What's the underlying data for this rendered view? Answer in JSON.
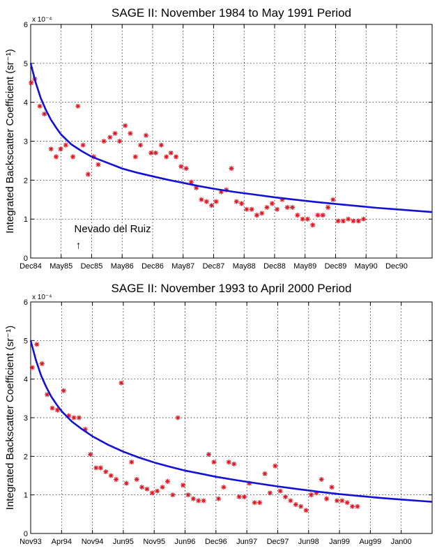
{
  "chart_data": [
    {
      "type": "scatter",
      "title": "SAGE II: November 1984 to May 1991 Period",
      "ylabel": "Integrated Backscatter Coefficient (sr⁻¹)",
      "y_multiplier": "x 10⁻⁴",
      "ylim": [
        0,
        6
      ],
      "yticks": [
        "0",
        "1",
        "2",
        "3",
        "4",
        "5",
        "6"
      ],
      "xlim": [
        0,
        79
      ],
      "xticks": [
        {
          "label": "Dec84",
          "x": 0
        },
        {
          "label": "May85",
          "x": 6
        },
        {
          "label": "Dec85",
          "x": 12
        },
        {
          "label": "May86",
          "x": 18
        },
        {
          "label": "Dec86",
          "x": 24
        },
        {
          "label": "May87",
          "x": 30
        },
        {
          "label": "Dec87",
          "x": 36
        },
        {
          "label": "May88",
          "x": 42
        },
        {
          "label": "Dec88",
          "x": 48
        },
        {
          "label": "May89",
          "x": 54
        },
        {
          "label": "Dec89",
          "x": 60
        },
        {
          "label": "May90",
          "x": 66
        },
        {
          "label": "Dec90",
          "x": 72
        }
      ],
      "grid": true,
      "annotation": {
        "text": "Nevado del Ruiz",
        "arrow": "↑",
        "x": 9.4
      },
      "series": [
        {
          "style": "marker-asterisk",
          "color": "#e0141e",
          "points": [
            [
              0.1,
              4.5
            ],
            [
              0.8,
              4.6
            ],
            [
              1.8,
              3.9
            ],
            [
              2.7,
              3.7
            ],
            [
              4.0,
              2.8
            ],
            [
              5.0,
              2.6
            ],
            [
              5.9,
              2.8
            ],
            [
              6.9,
              2.9
            ],
            [
              8.3,
              2.6
            ],
            [
              9.3,
              3.9
            ],
            [
              10.3,
              2.9
            ],
            [
              11.3,
              2.15
            ],
            [
              12.4,
              2.6
            ],
            [
              13.3,
              2.4
            ],
            [
              14.4,
              3.0
            ],
            [
              15.6,
              3.1
            ],
            [
              16.6,
              3.2
            ],
            [
              17.5,
              3.0
            ],
            [
              18.6,
              3.4
            ],
            [
              19.6,
              3.2
            ],
            [
              20.6,
              2.6
            ],
            [
              21.6,
              2.9
            ],
            [
              22.7,
              3.15
            ],
            [
              23.7,
              2.7
            ],
            [
              24.6,
              2.7
            ],
            [
              25.7,
              2.9
            ],
            [
              26.7,
              2.6
            ],
            [
              27.6,
              2.7
            ],
            [
              28.6,
              2.6
            ],
            [
              29.6,
              2.35
            ],
            [
              30.6,
              2.3
            ],
            [
              31.6,
              1.95
            ],
            [
              32.6,
              1.8
            ],
            [
              33.6,
              1.5
            ],
            [
              34.6,
              1.45
            ],
            [
              35.6,
              1.35
            ],
            [
              36.5,
              1.45
            ],
            [
              37.5,
              1.7
            ],
            [
              38.5,
              1.75
            ],
            [
              39.5,
              2.3
            ],
            [
              40.5,
              1.45
            ],
            [
              41.5,
              1.4
            ],
            [
              42.5,
              1.25
            ],
            [
              43.5,
              1.25
            ],
            [
              44.5,
              1.1
            ],
            [
              45.5,
              1.15
            ],
            [
              46.5,
              1.3
            ],
            [
              47.5,
              1.4
            ],
            [
              48.5,
              1.25
            ],
            [
              49.5,
              1.5
            ],
            [
              50.5,
              1.3
            ],
            [
              51.5,
              1.3
            ],
            [
              52.5,
              1.1
            ],
            [
              53.5,
              1.0
            ],
            [
              54.5,
              1.0
            ],
            [
              55.5,
              0.85
            ],
            [
              56.5,
              1.1
            ],
            [
              57.5,
              1.1
            ],
            [
              58.5,
              1.3
            ],
            [
              59.5,
              1.5
            ],
            [
              60.5,
              0.95
            ],
            [
              61.5,
              0.95
            ],
            [
              62.5,
              1.0
            ],
            [
              63.5,
              0.95
            ],
            [
              64.5,
              0.95
            ],
            [
              65.5,
              1.0
            ]
          ]
        },
        {
          "style": "line",
          "color": "#1010d8",
          "points": [
            [
              0,
              5.0
            ],
            [
              1,
              4.5
            ],
            [
              2,
              4.1
            ],
            [
              3,
              3.8
            ],
            [
              4,
              3.55
            ],
            [
              5,
              3.35
            ],
            [
              6,
              3.17
            ],
            [
              8,
              2.92
            ],
            [
              10,
              2.75
            ],
            [
              12,
              2.6
            ],
            [
              15,
              2.45
            ],
            [
              18,
              2.3
            ],
            [
              21,
              2.19
            ],
            [
              24,
              2.1
            ],
            [
              27,
              2.01
            ],
            [
              30,
              1.93
            ],
            [
              33,
              1.85
            ],
            [
              36,
              1.78
            ],
            [
              40,
              1.7
            ],
            [
              44,
              1.63
            ],
            [
              48,
              1.56
            ],
            [
              52,
              1.5
            ],
            [
              56,
              1.44
            ],
            [
              60,
              1.39
            ],
            [
              64,
              1.34
            ],
            [
              68,
              1.29
            ],
            [
              72,
              1.25
            ],
            [
              76,
              1.21
            ],
            [
              79,
              1.18
            ]
          ]
        }
      ]
    },
    {
      "type": "scatter",
      "title": "SAGE II: November 1993 to April 2000 Period",
      "ylabel": "Integrated Backscatter Coefficient (sr⁻¹)",
      "y_multiplier": "x 10⁻⁴",
      "ylim": [
        0,
        6
      ],
      "yticks": [
        "0",
        "1",
        "2",
        "3",
        "4",
        "5",
        "6"
      ],
      "xlim": [
        0,
        78
      ],
      "xticks": [
        {
          "label": "Nov93",
          "x": 0
        },
        {
          "label": "Apr94",
          "x": 6
        },
        {
          "label": "Nov94",
          "x": 12
        },
        {
          "label": "Jun95",
          "x": 18
        },
        {
          "label": "Nov95",
          "x": 24
        },
        {
          "label": "Jun96",
          "x": 30
        },
        {
          "label": "Dec96",
          "x": 36
        },
        {
          "label": "Jun97",
          "x": 42
        },
        {
          "label": "Dec97",
          "x": 48
        },
        {
          "label": "Jun98",
          "x": 54
        },
        {
          "label": "Jan99",
          "x": 60
        },
        {
          "label": "Aug99",
          "x": 66
        },
        {
          "label": "Jan00",
          "x": 72
        }
      ],
      "grid": true,
      "series": [
        {
          "style": "marker-asterisk",
          "color": "#e0141e",
          "points": [
            [
              0.3,
              4.3
            ],
            [
              1.2,
              4.9
            ],
            [
              2.2,
              4.4
            ],
            [
              3.2,
              3.6
            ],
            [
              4.2,
              3.25
            ],
            [
              5.2,
              3.2
            ],
            [
              6.4,
              3.7
            ],
            [
              7.4,
              3.05
            ],
            [
              8.4,
              3.0
            ],
            [
              9.4,
              3.0
            ],
            [
              10.6,
              2.7
            ],
            [
              11.6,
              2.05
            ],
            [
              12.7,
              1.7
            ],
            [
              13.6,
              1.7
            ],
            [
              14.6,
              1.6
            ],
            [
              15.6,
              1.5
            ],
            [
              16.6,
              1.4
            ],
            [
              17.6,
              3.9
            ],
            [
              18.6,
              1.3
            ],
            [
              19.6,
              1.85
            ],
            [
              20.6,
              1.4
            ],
            [
              21.6,
              1.2
            ],
            [
              22.6,
              1.15
            ],
            [
              23.6,
              1.05
            ],
            [
              24.6,
              1.1
            ],
            [
              25.6,
              1.2
            ],
            [
              26.6,
              1.35
            ],
            [
              27.6,
              1.0
            ],
            [
              28.6,
              3.0
            ],
            [
              29.6,
              1.25
            ],
            [
              30.6,
              1.0
            ],
            [
              31.6,
              0.9
            ],
            [
              32.6,
              0.85
            ],
            [
              33.6,
              0.85
            ],
            [
              34.6,
              2.05
            ],
            [
              35.6,
              1.85
            ],
            [
              36.5,
              0.9
            ],
            [
              37.5,
              1.2
            ],
            [
              38.5,
              1.85
            ],
            [
              39.5,
              1.8
            ],
            [
              40.5,
              0.95
            ],
            [
              41.5,
              0.95
            ],
            [
              42.5,
              1.3
            ],
            [
              43.5,
              0.8
            ],
            [
              44.5,
              0.8
            ],
            [
              45.5,
              1.55
            ],
            [
              46.5,
              1.05
            ],
            [
              47.5,
              1.75
            ],
            [
              48.5,
              1.1
            ],
            [
              49.5,
              0.95
            ],
            [
              50.5,
              0.85
            ],
            [
              51.5,
              0.75
            ],
            [
              52.5,
              0.7
            ],
            [
              53.5,
              0.6
            ],
            [
              54.5,
              1.0
            ],
            [
              55.5,
              1.05
            ],
            [
              56.5,
              1.4
            ],
            [
              57.5,
              0.9
            ],
            [
              58.5,
              1.2
            ],
            [
              59.5,
              0.85
            ],
            [
              60.5,
              0.85
            ],
            [
              61.5,
              0.8
            ],
            [
              62.5,
              0.7
            ],
            [
              63.5,
              0.7
            ]
          ]
        },
        {
          "style": "line",
          "color": "#1010d8",
          "points": [
            [
              0,
              5.0
            ],
            [
              1,
              4.5
            ],
            [
              2,
              4.1
            ],
            [
              3,
              3.8
            ],
            [
              4,
              3.55
            ],
            [
              5,
              3.35
            ],
            [
              6,
              3.17
            ],
            [
              8,
              2.9
            ],
            [
              10,
              2.7
            ],
            [
              12,
              2.52
            ],
            [
              15,
              2.3
            ],
            [
              18,
              2.12
            ],
            [
              21,
              1.97
            ],
            [
              24,
              1.84
            ],
            [
              27,
              1.73
            ],
            [
              30,
              1.63
            ],
            [
              33,
              1.55
            ],
            [
              36,
              1.47
            ],
            [
              40,
              1.38
            ],
            [
              44,
              1.3
            ],
            [
              48,
              1.22
            ],
            [
              52,
              1.15
            ],
            [
              56,
              1.08
            ],
            [
              60,
              1.02
            ],
            [
              64,
              0.97
            ],
            [
              68,
              0.92
            ],
            [
              72,
              0.88
            ],
            [
              76,
              0.84
            ],
            [
              78,
              0.82
            ]
          ]
        }
      ]
    }
  ]
}
